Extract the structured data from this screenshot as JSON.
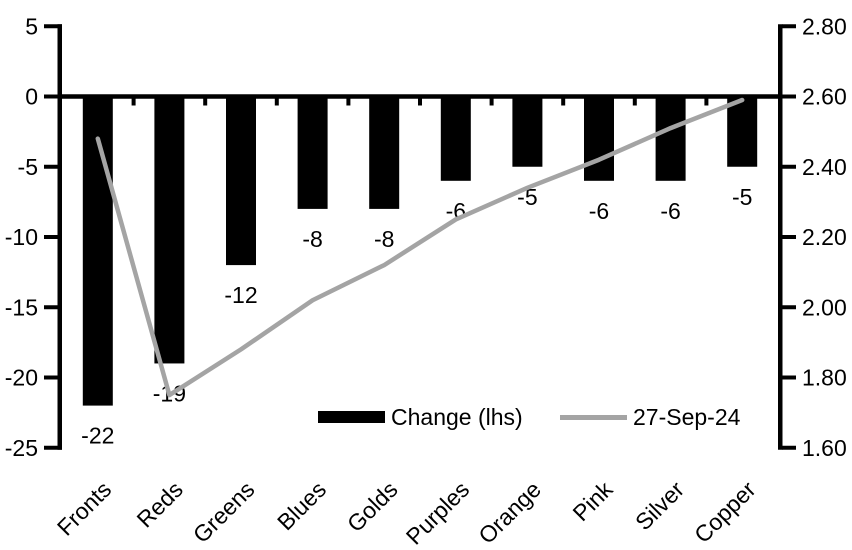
{
  "chart_data": {
    "type": "bar",
    "subtype": "bar-with-line-overlay",
    "categories": [
      "Fronts",
      "Reds",
      "Greens",
      "Blues",
      "Golds",
      "Purples",
      "Orange",
      "Pink",
      "Silver",
      "Copper"
    ],
    "series": [
      {
        "name": "Change (lhs)",
        "type": "bar",
        "axis": "left",
        "values": [
          -22,
          -19,
          -12,
          -8,
          -8,
          -6,
          -5,
          -6,
          -6,
          -5
        ],
        "data_labels": [
          "-22",
          "-19",
          "-12",
          "-8",
          "-8",
          "-6",
          "-5",
          "-6",
          "-6",
          "-5"
        ]
      },
      {
        "name": "27-Sep-24",
        "type": "line",
        "axis": "right",
        "values": [
          2.48,
          1.75,
          1.88,
          2.02,
          2.12,
          2.25,
          2.34,
          2.42,
          2.51,
          2.59
        ]
      }
    ],
    "left_axis": {
      "tick_labels": [
        "5",
        "0",
        "-5",
        "-10",
        "-15",
        "-20",
        "-25"
      ],
      "tick_values": [
        5,
        0,
        -5,
        -10,
        -15,
        -20,
        -25
      ],
      "range": [
        -25,
        5
      ]
    },
    "right_axis": {
      "tick_labels": [
        "2.80",
        "2.60",
        "2.40",
        "2.20",
        "2.00",
        "1.80",
        "1.60"
      ],
      "tick_values": [
        2.8,
        2.6,
        2.4,
        2.2,
        2.0,
        1.8,
        1.6
      ],
      "range": [
        1.6,
        2.8
      ]
    },
    "title": "",
    "xlabel": "",
    "ylabel": "",
    "grid": false,
    "legend_position": "inside-bottom"
  },
  "legend": {
    "bar_label": "Change (lhs)",
    "line_label": "27-Sep-24"
  },
  "colors": {
    "bar": "#000000",
    "line": "#A4A4A4",
    "axis": "#000000",
    "text": "#000000",
    "background": "#FFFFFF"
  }
}
